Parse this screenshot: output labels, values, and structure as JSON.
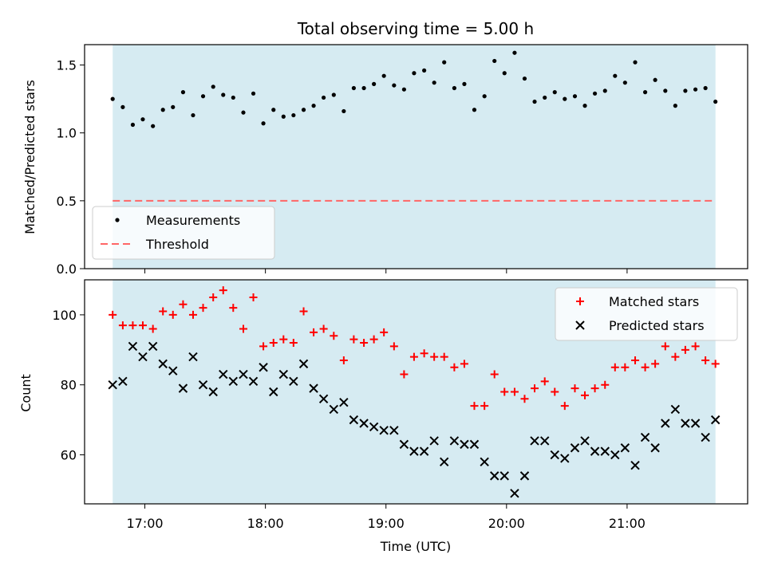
{
  "chart_data": [
    {
      "type": "scatter",
      "title": "Total observing time = 5.00 h",
      "xlabel": "",
      "ylabel": "Matched/Predicted stars",
      "xlim": [
        16.5,
        22.0
      ],
      "ylim": [
        0.0,
        1.65
      ],
      "yticks": [
        0.0,
        0.5,
        1.0,
        1.5
      ],
      "ytick_labels": [
        "0.0",
        "0.5",
        "1.0",
        "1.5"
      ],
      "shaded_span": [
        16.7333,
        21.7333
      ],
      "legend_position": "lower-left",
      "series": [
        {
          "name": "Measurements",
          "marker": "dot",
          "color": "#000000",
          "x": [
            16.733,
            16.817,
            16.9,
            16.983,
            17.067,
            17.15,
            17.233,
            17.317,
            17.4,
            17.483,
            17.567,
            17.65,
            17.733,
            17.817,
            17.9,
            17.983,
            18.067,
            18.15,
            18.233,
            18.317,
            18.4,
            18.483,
            18.567,
            18.65,
            18.733,
            18.817,
            18.9,
            18.983,
            19.067,
            19.15,
            19.233,
            19.317,
            19.4,
            19.483,
            19.567,
            19.65,
            19.733,
            19.817,
            19.9,
            19.983,
            20.067,
            20.15,
            20.233,
            20.317,
            20.4,
            20.483,
            20.567,
            20.65,
            20.733,
            20.817,
            20.9,
            20.983,
            21.067,
            21.15,
            21.233,
            21.317,
            21.4,
            21.483,
            21.567,
            21.65,
            21.733
          ],
          "y": [
            1.25,
            1.19,
            1.06,
            1.1,
            1.05,
            1.17,
            1.19,
            1.3,
            1.13,
            1.27,
            1.34,
            1.28,
            1.26,
            1.15,
            1.29,
            1.07,
            1.17,
            1.12,
            1.13,
            1.17,
            1.2,
            1.26,
            1.28,
            1.16,
            1.33,
            1.33,
            1.36,
            1.42,
            1.35,
            1.32,
            1.44,
            1.46,
            1.37,
            1.52,
            1.33,
            1.36,
            1.17,
            1.27,
            1.53,
            1.44,
            1.59,
            1.4,
            1.23,
            1.26,
            1.3,
            1.25,
            1.27,
            1.2,
            1.29,
            1.31,
            1.42,
            1.37,
            1.52,
            1.3,
            1.39,
            1.31,
            1.2,
            1.31,
            1.32,
            1.33,
            1.23
          ]
        },
        {
          "name": "Threshold",
          "style": "dashed",
          "color": "#ff6666",
          "x": [
            16.733,
            21.733
          ],
          "y": [
            0.5,
            0.5
          ]
        }
      ]
    },
    {
      "type": "scatter",
      "title": "",
      "xlabel": "Time (UTC)",
      "ylabel": "Count",
      "xlim": [
        16.5,
        22.0
      ],
      "ylim": [
        46,
        110
      ],
      "yticks": [
        60,
        80,
        100
      ],
      "ytick_labels": [
        "60",
        "80",
        "100"
      ],
      "xticks": [
        17,
        18,
        19,
        20,
        21
      ],
      "xtick_labels": [
        "17:00",
        "18:00",
        "19:00",
        "20:00",
        "21:00"
      ],
      "shaded_span": [
        16.7333,
        21.7333
      ],
      "legend_position": "top-right",
      "series": [
        {
          "name": "Matched stars",
          "marker": "plus",
          "color": "#ff0000",
          "x": [
            16.733,
            16.817,
            16.9,
            16.983,
            17.067,
            17.15,
            17.233,
            17.317,
            17.4,
            17.483,
            17.567,
            17.65,
            17.733,
            17.817,
            17.9,
            17.983,
            18.067,
            18.15,
            18.233,
            18.317,
            18.4,
            18.483,
            18.567,
            18.65,
            18.733,
            18.817,
            18.9,
            18.983,
            19.067,
            19.15,
            19.233,
            19.317,
            19.4,
            19.483,
            19.567,
            19.65,
            19.733,
            19.817,
            19.9,
            19.983,
            20.067,
            20.15,
            20.233,
            20.317,
            20.4,
            20.483,
            20.567,
            20.65,
            20.733,
            20.817,
            20.9,
            20.983,
            21.067,
            21.15,
            21.233,
            21.317,
            21.4,
            21.483,
            21.567,
            21.65,
            21.733
          ],
          "y": [
            100,
            97,
            97,
            97,
            96,
            101,
            100,
            103,
            100,
            102,
            105,
            107,
            102,
            96,
            105,
            91,
            92,
            93,
            92,
            101,
            95,
            96,
            94,
            87,
            93,
            92,
            93,
            95,
            91,
            83,
            88,
            89,
            88,
            88,
            85,
            86,
            74,
            74,
            83,
            78,
            78,
            76,
            79,
            81,
            78,
            74,
            79,
            77,
            79,
            80,
            85,
            85,
            87,
            85,
            86,
            91,
            88,
            90,
            91,
            87,
            86
          ]
        },
        {
          "name": "Predicted stars",
          "marker": "x",
          "color": "#000000",
          "x": [
            16.733,
            16.817,
            16.9,
            16.983,
            17.067,
            17.15,
            17.233,
            17.317,
            17.4,
            17.483,
            17.567,
            17.65,
            17.733,
            17.817,
            17.9,
            17.983,
            18.067,
            18.15,
            18.233,
            18.317,
            18.4,
            18.483,
            18.567,
            18.65,
            18.733,
            18.817,
            18.9,
            18.983,
            19.067,
            19.15,
            19.233,
            19.317,
            19.4,
            19.483,
            19.567,
            19.65,
            19.733,
            19.817,
            19.9,
            19.983,
            20.067,
            20.15,
            20.233,
            20.317,
            20.4,
            20.483,
            20.567,
            20.65,
            20.733,
            20.817,
            20.9,
            20.983,
            21.067,
            21.15,
            21.233,
            21.317,
            21.4,
            21.483,
            21.567,
            21.65,
            21.733
          ],
          "y": [
            80,
            81,
            91,
            88,
            91,
            86,
            84,
            79,
            88,
            80,
            78,
            83,
            81,
            83,
            81,
            85,
            78,
            83,
            81,
            86,
            79,
            76,
            73,
            75,
            70,
            69,
            68,
            67,
            67,
            63,
            61,
            61,
            64,
            58,
            64,
            63,
            63,
            58,
            54,
            54,
            49,
            54,
            64,
            64,
            60,
            59,
            62,
            64,
            61,
            61,
            60,
            62,
            57,
            65,
            62,
            69,
            73,
            69,
            69,
            65,
            70
          ]
        }
      ]
    }
  ],
  "colors": {
    "shade": "#add8e6",
    "matched": "#ff0000",
    "predicted": "#000000",
    "threshold": "#ff6666"
  }
}
